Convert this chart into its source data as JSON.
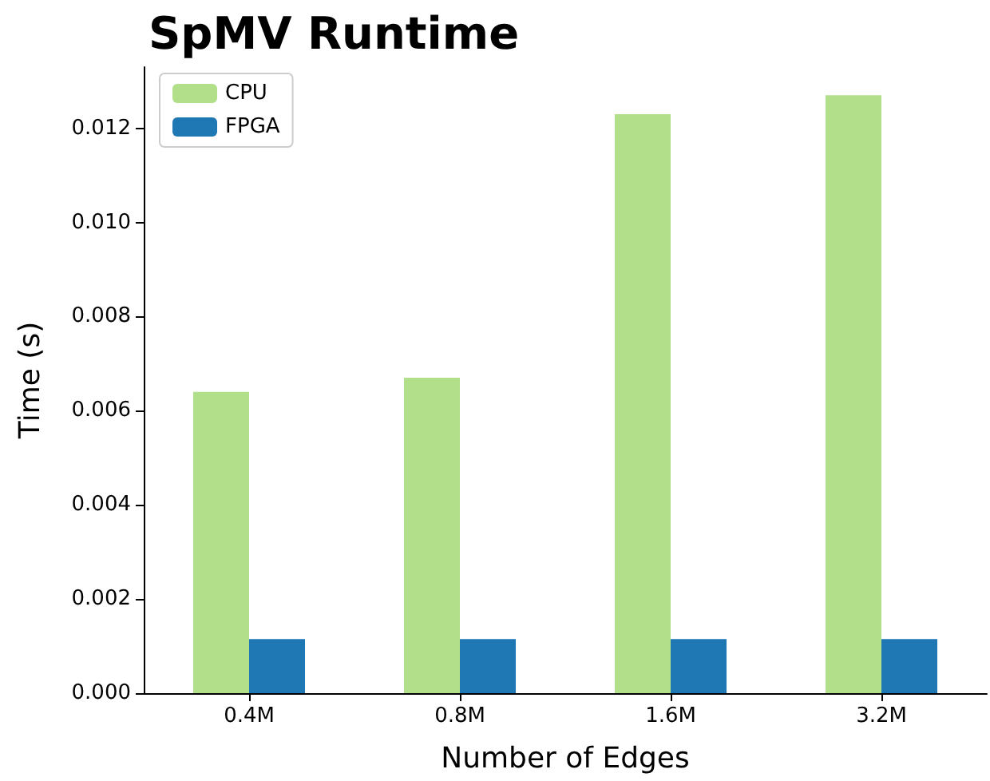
{
  "chart_data": {
    "type": "bar",
    "title": "SpMV Runtime",
    "xlabel": "Number of Edges",
    "ylabel": "Time (s)",
    "categories": [
      "0.4M",
      "0.8M",
      "1.6M",
      "3.2M"
    ],
    "series": [
      {
        "name": "CPU",
        "color": "#b2df8a",
        "values": [
          0.0064,
          0.0067,
          0.0123,
          0.0127
        ]
      },
      {
        "name": "FPGA",
        "color": "#1f78b4",
        "values": [
          0.00115,
          0.00115,
          0.00115,
          0.00115
        ]
      }
    ],
    "ylim": [
      0,
      0.0133
    ],
    "yticks": [
      {
        "value": 0,
        "label": "0.000"
      },
      {
        "value": 0.002,
        "label": "0.002"
      },
      {
        "value": 0.004,
        "label": "0.004"
      },
      {
        "value": 0.006,
        "label": "0.006"
      },
      {
        "value": 0.008,
        "label": "0.008"
      },
      {
        "value": 0.01,
        "label": "0.010"
      },
      {
        "value": 0.012,
        "label": "0.012"
      }
    ],
    "legend": "top left",
    "grid": false
  }
}
